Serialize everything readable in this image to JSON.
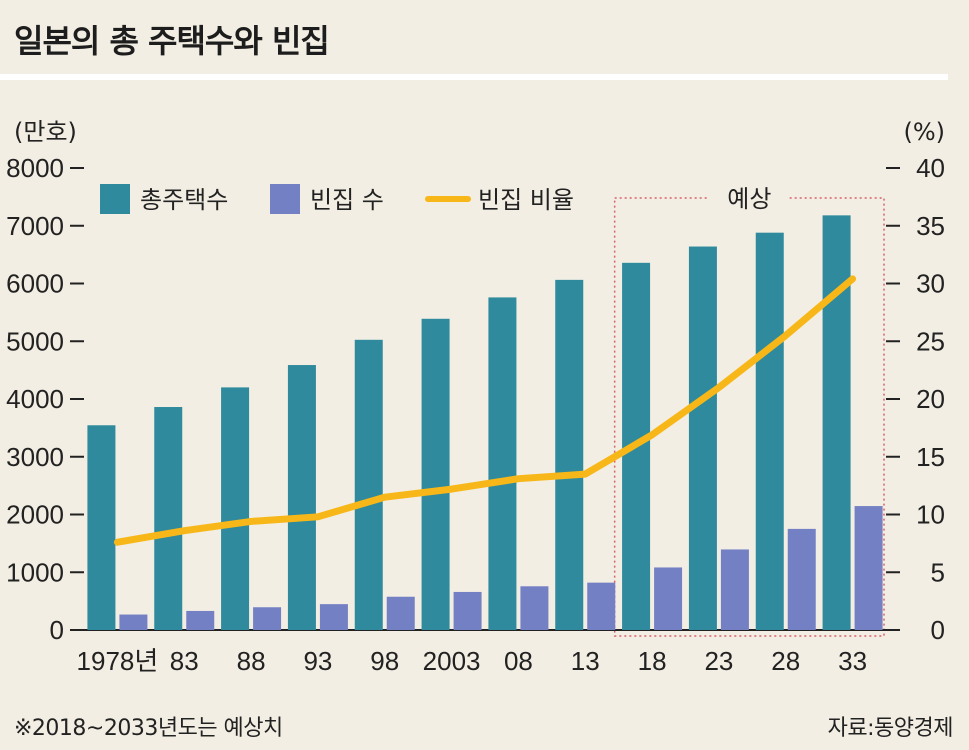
{
  "title": "일본의 총 주택수와 빈집",
  "footnote_left": "※2018~2033년도는 예상치",
  "footnote_right": "자료:동양경제",
  "colors": {
    "total": "#2e8a9c",
    "vacant": "#7480c4",
    "ratio": "#f7b718",
    "forecast_box": "#d8606a"
  },
  "chart_data": {
    "type": "bar",
    "categories": [
      "1978년",
      "83",
      "88",
      "93",
      "98",
      "2003",
      "08",
      "13",
      "18",
      "23",
      "28",
      "33"
    ],
    "series": [
      {
        "name": "총주택수",
        "type": "bar",
        "axis": "left",
        "values": [
          3545,
          3861,
          4201,
          4588,
          5025,
          5389,
          5759,
          6063,
          6358,
          6640,
          6880,
          7180
        ]
      },
      {
        "name": "빈집 수",
        "type": "bar",
        "axis": "left",
        "values": [
          268,
          330,
          394,
          448,
          576,
          659,
          757,
          820,
          1083,
          1395,
          1751,
          2146
        ]
      },
      {
        "name": "빈집 비율",
        "type": "line",
        "axis": "right",
        "values": [
          7.6,
          8.6,
          9.4,
          9.8,
          11.5,
          12.2,
          13.1,
          13.5,
          16.9,
          21.0,
          25.5,
          30.4
        ]
      }
    ],
    "y_left": {
      "label": "(만호)",
      "range": [
        0,
        8000
      ],
      "ticks": [
        0,
        1000,
        2000,
        3000,
        4000,
        5000,
        6000,
        7000,
        8000
      ]
    },
    "y_right": {
      "label": "(%)",
      "range": [
        0,
        40
      ],
      "ticks": [
        0,
        5,
        10,
        15,
        20,
        25,
        30,
        35,
        40
      ]
    },
    "forecast": {
      "label": "예상",
      "categories": [
        "18",
        "23",
        "28",
        "33"
      ]
    },
    "legend_position": "top-left",
    "grid": false
  }
}
